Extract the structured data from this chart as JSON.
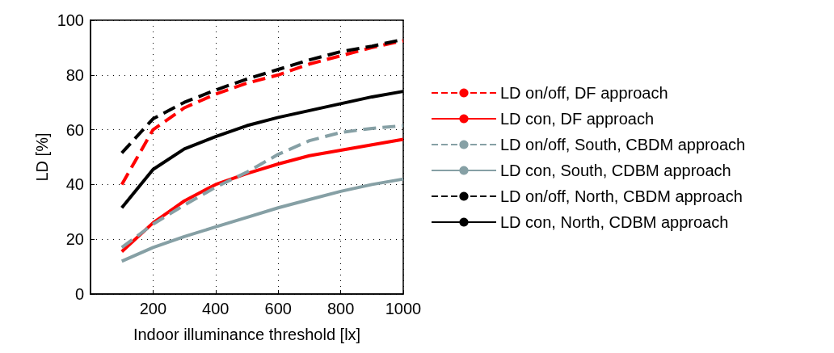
{
  "chart_data": {
    "type": "line",
    "xlabel": "Indoor illuminance threshold [lx]",
    "ylabel": "LD [%]",
    "x": [
      100,
      200,
      300,
      400,
      500,
      600,
      700,
      800,
      900,
      1000
    ],
    "xlim": [
      0,
      1000
    ],
    "xticks": [
      200,
      400,
      600,
      800,
      1000
    ],
    "ylim": [
      0,
      100
    ],
    "yticks": [
      0,
      20,
      40,
      60,
      80,
      100
    ],
    "grid": true,
    "legend": "right",
    "marker": "none",
    "series": [
      {
        "name": "LD on/off, DF approach",
        "color": "#ff0000",
        "line_style": "dashed",
        "values": [
          40,
          60,
          68,
          73,
          77,
          80,
          84,
          87,
          90,
          92.5
        ]
      },
      {
        "name": "LD con, DF approach",
        "color": "#ff0000",
        "line_style": "solid",
        "values": [
          15.5,
          26,
          34,
          40,
          44,
          47.5,
          50.5,
          52.5,
          54.5,
          56.5
        ]
      },
      {
        "name": "LD on/off, South, CBDM approach",
        "color": "#86a0a5",
        "line_style": "dashed",
        "values": [
          17,
          25.5,
          32.5,
          39,
          44.5,
          51,
          56,
          59,
          60.5,
          61.5
        ]
      },
      {
        "name": "LD con, South, CDBM approach",
        "color": "#86a0a5",
        "line_style": "solid",
        "values": [
          12,
          17,
          21,
          24.5,
          28,
          31.5,
          34.5,
          37.5,
          40,
          42
        ]
      },
      {
        "name": "LD on/off, North, CBDM approach",
        "color": "#000000",
        "line_style": "dashed",
        "values": [
          51.5,
          64,
          70,
          74.5,
          78.5,
          82,
          85.5,
          88.5,
          90.5,
          93
        ]
      },
      {
        "name": "LD con, North, CDBM approach",
        "color": "#000000",
        "line_style": "solid",
        "values": [
          31.5,
          45.5,
          53,
          57.5,
          61.5,
          64.5,
          67,
          69.5,
          72,
          74
        ]
      }
    ]
  }
}
